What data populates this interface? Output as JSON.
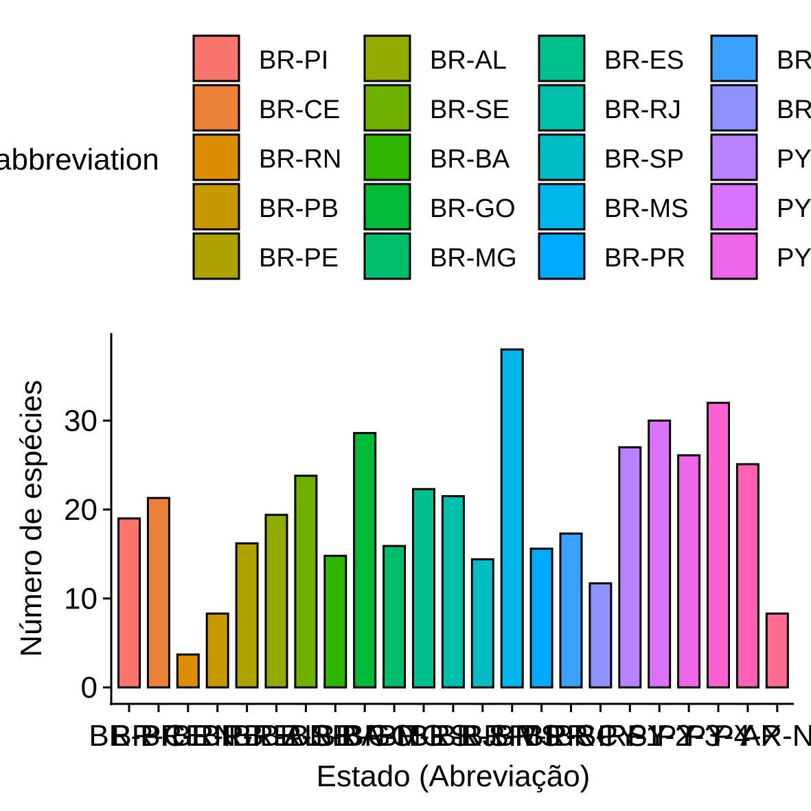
{
  "chart_data": {
    "type": "bar",
    "title": "",
    "xlabel": "Estado (Abreviação)",
    "ylabel": "Número de espécies",
    "legend_title": "abbreviation",
    "legend_position": "top",
    "ylim": [
      0,
      40
    ],
    "yticks": [
      0,
      10,
      20,
      30
    ],
    "categories": [
      "BR-PI",
      "BR-CE",
      "BR-RN",
      "BR-PB",
      "BR-PE",
      "BR-AL",
      "BR-SE",
      "BR-BA",
      "BR-GO",
      "BR-MG",
      "BR-ES",
      "BR-RJ",
      "BR-SP",
      "BR-MS",
      "BR-PR",
      "BR-SC",
      "BR-RS",
      "PY-1",
      "PY-2",
      "PY-3",
      "PY-4",
      "PY-X",
      "AR-N"
    ],
    "values": [
      19,
      21.3,
      3.7,
      8.3,
      16.2,
      19.4,
      23.8,
      14.8,
      28.6,
      15.9,
      22.3,
      21.5,
      14.4,
      38,
      15.6,
      17.3,
      11.7,
      27,
      30,
      26.1,
      32,
      25.1,
      8.3
    ],
    "colors": [
      "#F8766D",
      "#EC8239",
      "#DB8E00",
      "#C79800",
      "#AEA200",
      "#93AA00",
      "#6FB000",
      "#2FB600",
      "#00BA38",
      "#00BE6C",
      "#00BF8E",
      "#00C0AC",
      "#00BDC5",
      "#00B6EB",
      "#00ABFD",
      "#3AA1FF",
      "#8F91FF",
      "#B983FF",
      "#DB72FB",
      "#F066E8",
      "#FD61D1",
      "#FF62B5",
      "#FF6C91"
    ],
    "legend_visible_entries": [
      "BR-PI",
      "BR-CE",
      "BR-RN",
      "BR-PB",
      "BR-PE",
      "BR-AL",
      "BR-SE",
      "BR-BA",
      "BR-GO",
      "BR-MG",
      "BR-ES",
      "BR-RJ",
      "BR-SP",
      "BR-MS",
      "BR-PR",
      "BR",
      "BR",
      "PY",
      "PY",
      "PY"
    ]
  }
}
